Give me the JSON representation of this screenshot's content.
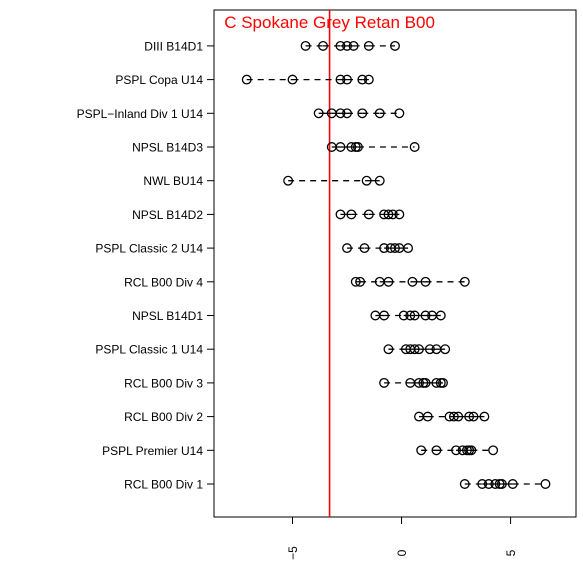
{
  "chart_data": {
    "type": "scatter",
    "categories": [
      "RCL B00 Div 1",
      "PSPL Premier U14",
      "RCL B00 Div 2",
      "RCL B00 Div 3",
      "PSPL Classic 1 U14",
      "NPSL B14D1",
      "RCL B00 Div 4",
      "PSPL Classic 2 U14",
      "NPSL B14D2",
      "NWL BU14",
      "NPSL B14D3",
      "PSPL-Inland Div 1 U14",
      "PSPL Copa U14",
      "DIII B14D1"
    ],
    "series": [
      {
        "values": [
          [
            2.9,
            3.7,
            4.0,
            4.3,
            4.5,
            4.6,
            5.1,
            6.6
          ],
          [
            0.9,
            1.6,
            2.5,
            2.8,
            3.0,
            3.1,
            3.2,
            4.2
          ],
          [
            0.8,
            1.2,
            2.2,
            2.4,
            2.6,
            3.1,
            3.3,
            3.8
          ],
          [
            -0.8,
            0.4,
            0.8,
            1.0,
            1.1,
            1.6,
            1.8,
            1.9
          ],
          [
            -0.6,
            0.2,
            0.4,
            0.6,
            0.8,
            1.3,
            1.6,
            2.0
          ],
          [
            -1.2,
            -0.8,
            0.1,
            0.4,
            0.6,
            1.1,
            1.4,
            1.8
          ],
          [
            -2.1,
            -1.9,
            -1.0,
            -0.6,
            0.5,
            1.1,
            2.9
          ],
          [
            -2.5,
            -1.7,
            -0.8,
            -0.5,
            -0.3,
            -0.1,
            0.3
          ],
          [
            -2.8,
            -2.3,
            -1.5,
            -0.8,
            -0.6,
            -0.4,
            -0.1
          ],
          [
            -5.2,
            -1.6,
            -1.0
          ],
          [
            -3.2,
            -2.8,
            -2.3,
            -2.1,
            -2.0,
            0.6
          ],
          [
            -3.8,
            -3.2,
            -2.8,
            -2.5,
            -1.8,
            -1.0,
            -0.1
          ],
          [
            -7.1,
            -5.0,
            -2.8,
            -2.5,
            -1.8,
            -1.5
          ],
          [
            -4.4,
            -3.6,
            -2.8,
            -2.5,
            -2.2,
            -1.5,
            -0.3
          ]
        ]
      }
    ],
    "xlim": [
      -8.6,
      8.0
    ],
    "xticks": [
      -5,
      0,
      5
    ],
    "xtick_labels": [
      "-5",
      "0",
      "5"
    ],
    "reference_line": {
      "x": -3.3,
      "label": "C Spokane Grey Retan B00",
      "color": "#ff0000"
    },
    "xlabel": "",
    "ylabel": "",
    "title": "",
    "grid": false
  }
}
